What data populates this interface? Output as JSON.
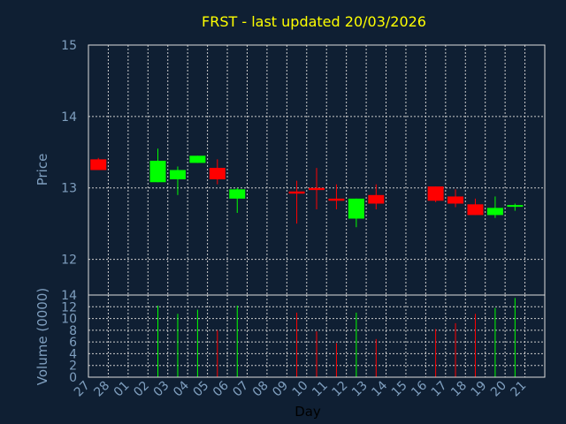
{
  "chart_data": {
    "type": "candlestick",
    "title": "FRST - last updated 20/03/2026",
    "xlabel": "Day",
    "ylabel_price": "Price",
    "ylabel_volume": "Volume (0000)",
    "price_ylim": [
      11.5,
      15
    ],
    "price_ticks": [
      "12",
      "13",
      "14",
      "15"
    ],
    "volume_ylim": [
      0,
      14
    ],
    "volume_ticks": [
      "0",
      "2",
      "4",
      "6",
      "8",
      "10",
      "12",
      "14"
    ],
    "x_tick_labels": [
      "27",
      "28",
      "01",
      "02",
      "03",
      "04",
      "05",
      "06",
      "07",
      "08",
      "09",
      "10",
      "11",
      "12",
      "13",
      "14",
      "15",
      "16",
      "17",
      "18",
      "19",
      "20",
      "21"
    ],
    "colors": {
      "up": "#00ff00",
      "down": "#ff0000",
      "background": "#0f1f33",
      "title": "#ffff00",
      "axis_text": "#7f9fbf",
      "grid": "#cccccc"
    },
    "candles": [
      {
        "day": "27",
        "open": 13.4,
        "high": 13.42,
        "low": 13.25,
        "close": 13.25,
        "volume": 0
      },
      {
        "day": "02",
        "open": 13.08,
        "high": 13.55,
        "low": 13.08,
        "close": 13.38,
        "volume": 12.2
      },
      {
        "day": "03",
        "open": 13.12,
        "high": 13.3,
        "low": 12.9,
        "close": 13.25,
        "volume": 10.8
      },
      {
        "day": "04",
        "open": 13.35,
        "high": 13.45,
        "low": 13.35,
        "close": 13.45,
        "volume": 11.5
      },
      {
        "day": "05",
        "open": 13.28,
        "high": 13.4,
        "low": 13.05,
        "close": 13.12,
        "volume": 8.0
      },
      {
        "day": "06",
        "open": 12.85,
        "high": 13.0,
        "low": 12.65,
        "close": 12.98,
        "volume": 12.2
      },
      {
        "day": "09",
        "open": 12.95,
        "high": 13.1,
        "low": 12.5,
        "close": 12.92,
        "volume": 11.0
      },
      {
        "day": "10",
        "open": 13.0,
        "high": 13.28,
        "low": 12.7,
        "close": 12.97,
        "volume": 7.8
      },
      {
        "day": "11",
        "open": 12.85,
        "high": 13.05,
        "low": 12.7,
        "close": 12.82,
        "volume": 5.8
      },
      {
        "day": "12",
        "open": 12.57,
        "high": 12.85,
        "low": 12.45,
        "close": 12.85,
        "volume": 11.0
      },
      {
        "day": "13",
        "open": 12.9,
        "high": 13.05,
        "low": 12.7,
        "close": 12.78,
        "volume": 6.5
      },
      {
        "day": "16",
        "open": 13.02,
        "high": 13.02,
        "low": 12.8,
        "close": 12.82,
        "volume": 8.2
      },
      {
        "day": "17",
        "open": 12.88,
        "high": 12.98,
        "low": 12.73,
        "close": 12.78,
        "volume": 9.2
      },
      {
        "day": "18",
        "open": 12.77,
        "high": 12.85,
        "low": 12.62,
        "close": 12.62,
        "volume": 10.8
      },
      {
        "day": "19",
        "open": 12.62,
        "high": 12.88,
        "low": 12.58,
        "close": 12.72,
        "volume": 11.8
      },
      {
        "day": "20",
        "open": 12.75,
        "high": 12.78,
        "low": 12.68,
        "close": 12.76,
        "volume": 13.5
      }
    ]
  }
}
